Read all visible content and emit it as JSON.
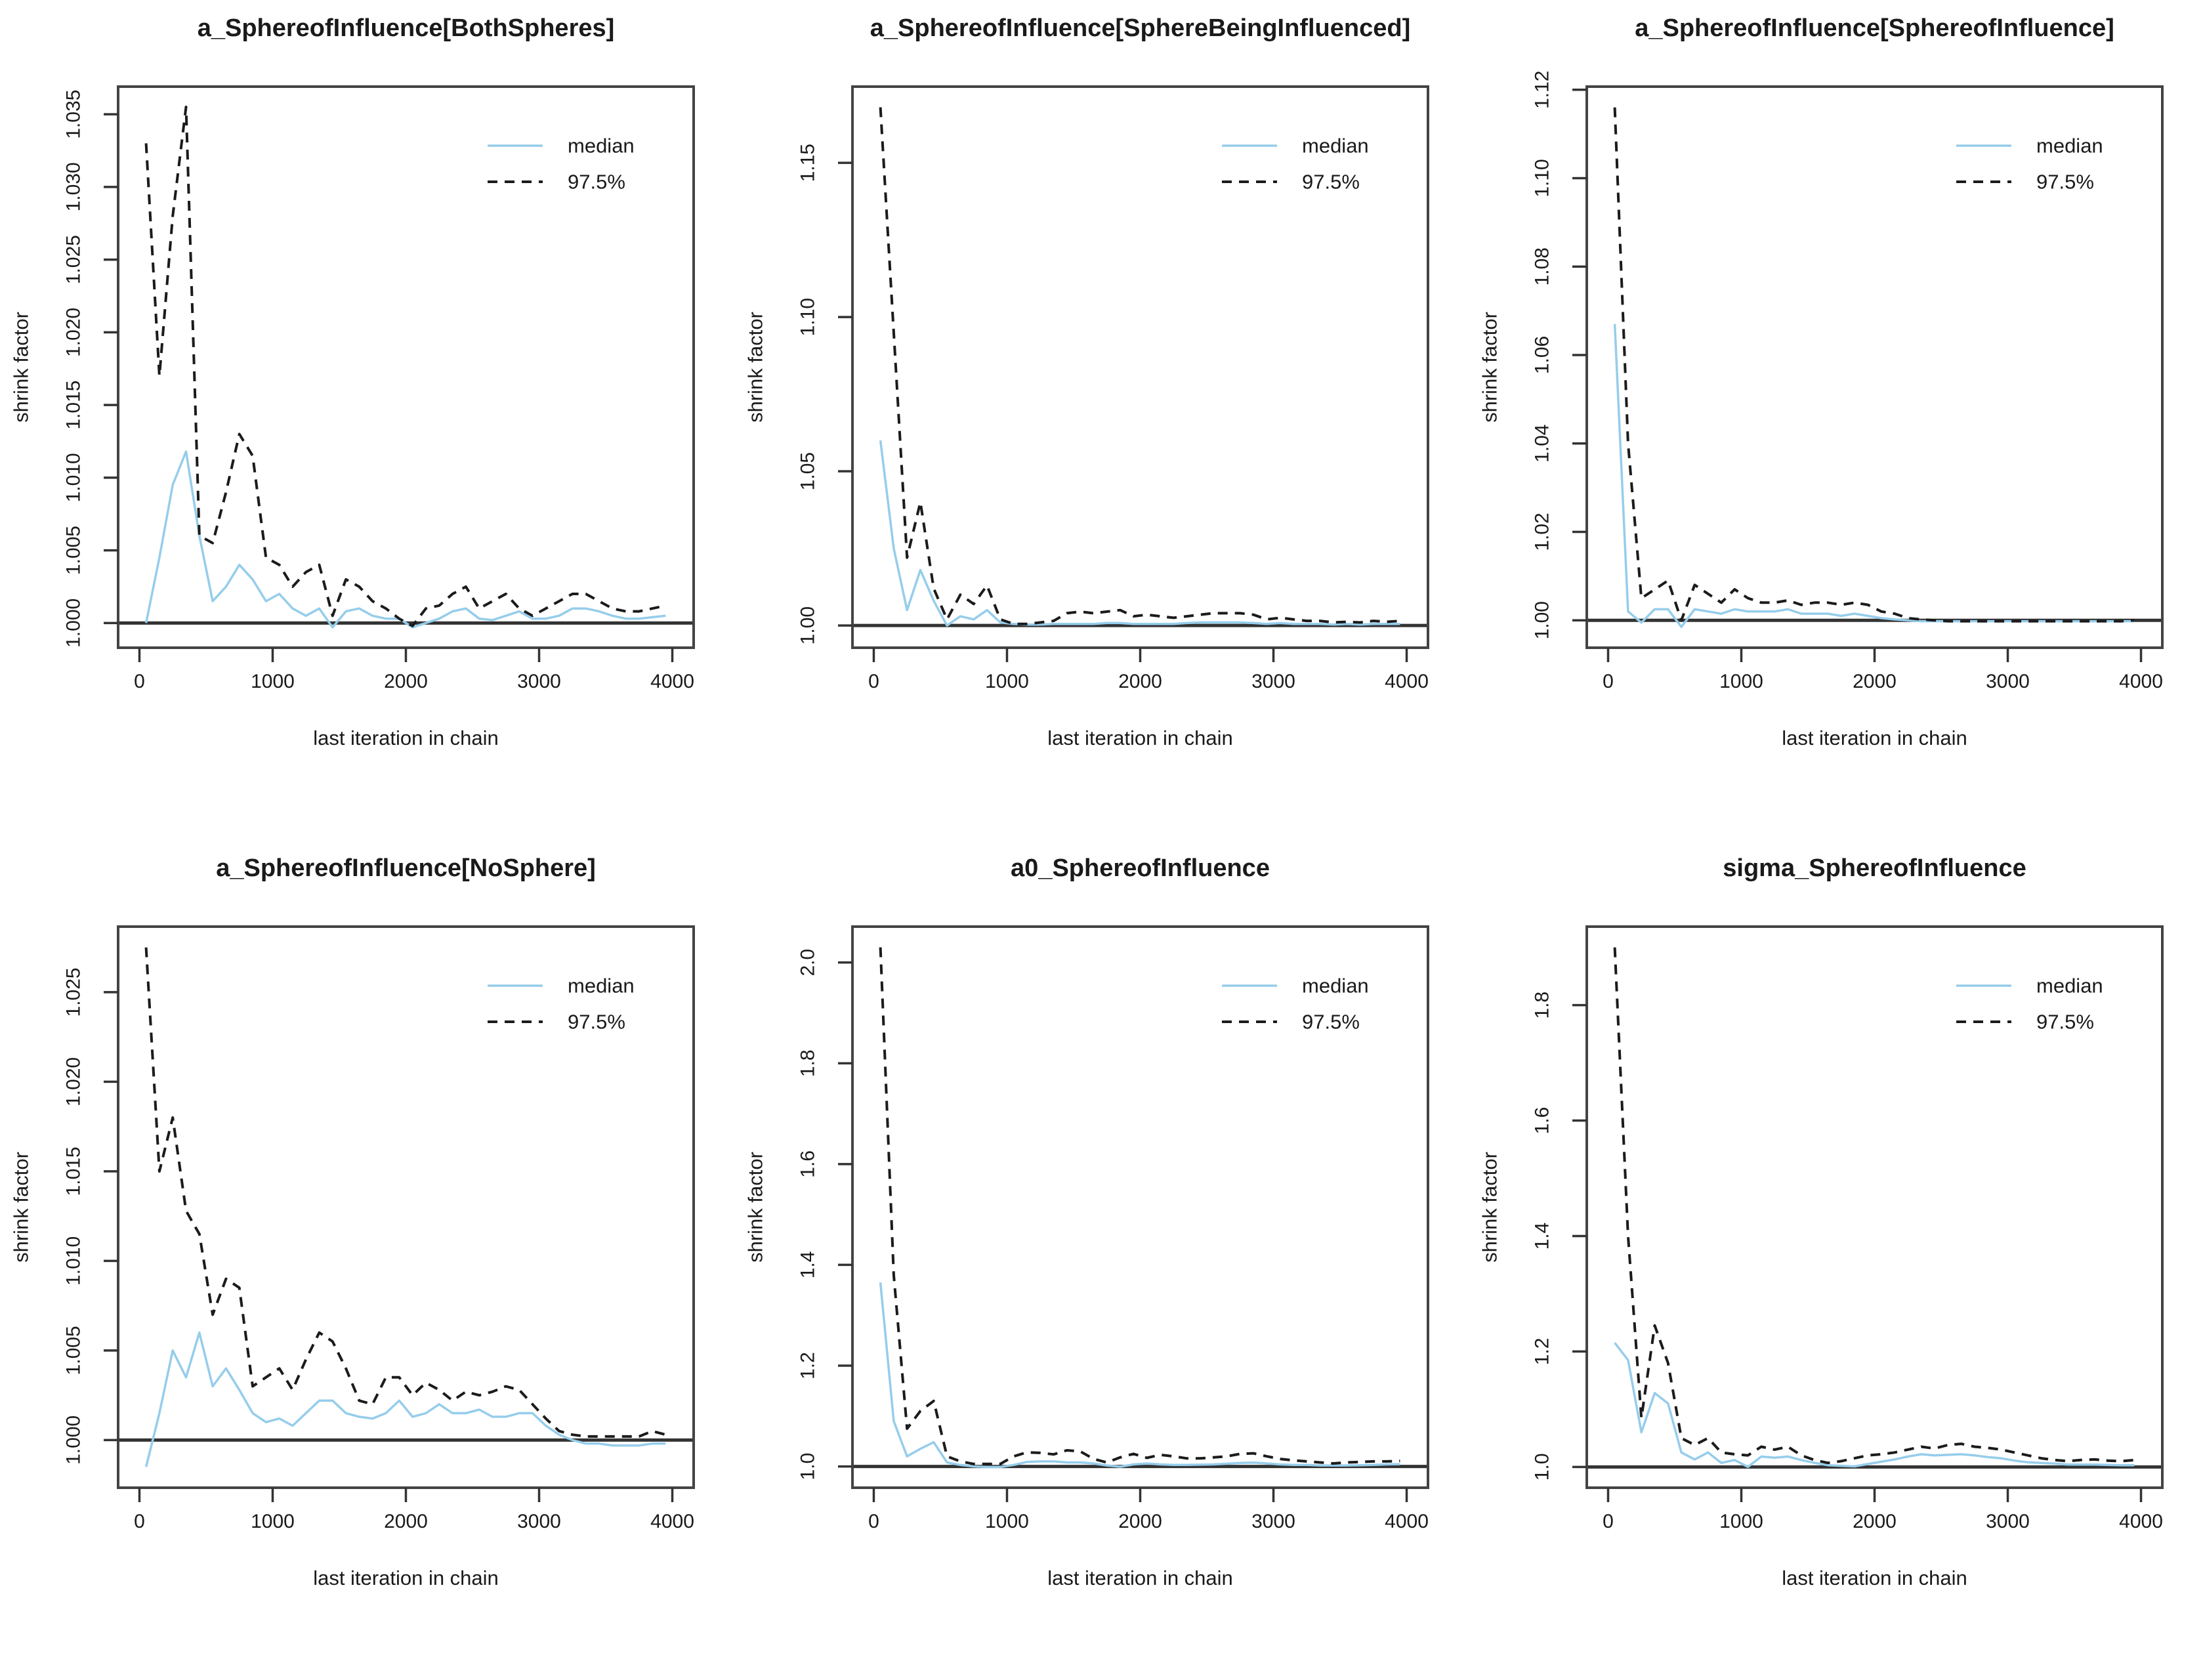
{
  "figure": {
    "rows": 2,
    "cols": 3,
    "background": "#ffffff"
  },
  "colors": {
    "median": "#96CDEB",
    "p975": "#1b1b1b",
    "box": "#444444",
    "refline": "#333333"
  },
  "legend": {
    "median_label": "median",
    "p975_label": "97.5%",
    "position": "top-right"
  },
  "axes": {
    "xlabel": "last iteration in chain",
    "ylabel": "shrink factor",
    "x_ticks": [
      0,
      1000,
      2000,
      3000,
      4000
    ],
    "x_tick_labels": [
      "0",
      "1000",
      "2000",
      "3000",
      "4000"
    ]
  },
  "chart_data": [
    {
      "type": "line",
      "title": "a_SphereofInfluence[BothSpheres]",
      "xlabel": "last iteration in chain",
      "ylabel": "shrink factor",
      "xlim": [
        0,
        4000
      ],
      "ylim": [
        0.9983,
        1.0369
      ],
      "x_ticks": [
        0,
        1000,
        2000,
        3000,
        4000
      ],
      "y_ticks": [
        1.0,
        1.005,
        1.01,
        1.015,
        1.02,
        1.025,
        1.03,
        1.035
      ],
      "y_tick_labels": [
        "1.000",
        "1.005",
        "1.010",
        "1.015",
        "1.020",
        "1.025",
        "1.030",
        "1.035"
      ],
      "ref_line_y": 1.0,
      "grid": false,
      "legend_position": "top-right",
      "x": [
        50,
        150,
        250,
        350,
        450,
        550,
        650,
        750,
        850,
        950,
        1050,
        1150,
        1250,
        1350,
        1450,
        1550,
        1650,
        1750,
        1850,
        1950,
        2050,
        2150,
        2250,
        2350,
        2450,
        2550,
        2650,
        2750,
        2850,
        2950,
        3050,
        3150,
        3250,
        3350,
        3450,
        3550,
        3650,
        3750,
        3850,
        3950
      ],
      "series": [
        {
          "name": "median",
          "style": "solid",
          "values": [
            1.0,
            1.0045,
            1.0095,
            1.0118,
            1.006,
            1.0015,
            1.0025,
            1.004,
            1.003,
            1.0015,
            1.002,
            1.001,
            1.0005,
            1.001,
            0.9997,
            1.0008,
            1.001,
            1.0005,
            1.0003,
            1.0003,
            0.9997,
            1.0,
            1.0003,
            1.0008,
            1.001,
            1.0003,
            1.0002,
            1.0005,
            1.0008,
            1.0003,
            1.0003,
            1.0005,
            1.001,
            1.001,
            1.0008,
            1.0005,
            1.0003,
            1.0003,
            1.0004,
            1.0005
          ]
        },
        {
          "name": "97.5%",
          "style": "dashed",
          "values": [
            1.033,
            1.017,
            1.028,
            1.0355,
            1.006,
            1.0055,
            1.009,
            1.013,
            1.0115,
            1.0045,
            1.004,
            1.0025,
            1.0035,
            1.004,
            1.0005,
            1.003,
            1.0025,
            1.0015,
            1.001,
            1.0003,
            0.9998,
            1.001,
            1.0012,
            1.002,
            1.0025,
            1.001,
            1.0015,
            1.002,
            1.001,
            1.0005,
            1.001,
            1.0015,
            1.002,
            1.002,
            1.0015,
            1.001,
            1.0008,
            1.0008,
            1.001,
            1.0012
          ]
        }
      ]
    },
    {
      "type": "line",
      "title": "a_SphereofInfluence[SphereBeingInfluenced]",
      "xlabel": "last iteration in chain",
      "ylabel": "shrink factor",
      "xlim": [
        0,
        4000
      ],
      "ylim": [
        0.9928,
        1.1747
      ],
      "x_ticks": [
        0,
        1000,
        2000,
        3000,
        4000
      ],
      "y_ticks": [
        1.0,
        1.05,
        1.1,
        1.15
      ],
      "y_tick_labels": [
        "1.00",
        "1.05",
        "1.10",
        "1.15"
      ],
      "ref_line_y": 1.0,
      "grid": false,
      "legend_position": "top-right",
      "x": [
        50,
        150,
        250,
        350,
        450,
        550,
        650,
        750,
        850,
        950,
        1050,
        1150,
        1250,
        1350,
        1450,
        1550,
        1650,
        1750,
        1850,
        1950,
        2050,
        2150,
        2250,
        2350,
        2450,
        2550,
        2650,
        2750,
        2850,
        2950,
        3050,
        3150,
        3250,
        3350,
        3450,
        3550,
        3650,
        3750,
        3850,
        3950
      ],
      "series": [
        {
          "name": "median",
          "style": "solid",
          "values": [
            1.06,
            1.025,
            1.005,
            1.018,
            1.008,
            1.0,
            1.003,
            1.002,
            1.005,
            1.001,
            1.0005,
            1.0003,
            1.0003,
            1.0005,
            1.0005,
            1.0005,
            1.0005,
            1.0008,
            1.0008,
            1.0005,
            1.0005,
            1.0005,
            1.0005,
            1.0008,
            1.001,
            1.001,
            1.001,
            1.001,
            1.0008,
            1.0005,
            1.0008,
            1.0005,
            1.0005,
            1.0005,
            1.0003,
            1.0005,
            1.0003,
            1.0005,
            1.0005,
            1.0005
          ]
        },
        {
          "name": "97.5%",
          "style": "dashed",
          "values": [
            1.168,
            1.095,
            1.022,
            1.04,
            1.012,
            1.002,
            1.01,
            1.007,
            1.013,
            1.002,
            1.0005,
            1.0005,
            1.001,
            1.0015,
            1.004,
            1.0045,
            1.004,
            1.0045,
            1.005,
            1.003,
            1.0035,
            1.003,
            1.0025,
            1.003,
            1.0035,
            1.004,
            1.004,
            1.004,
            1.0035,
            1.002,
            1.0025,
            1.002,
            1.0015,
            1.0015,
            1.001,
            1.0012,
            1.001,
            1.0015,
            1.0012,
            1.0015
          ]
        }
      ]
    },
    {
      "type": "line",
      "title": "a_SphereofInfluence[SphereofInfluence]",
      "xlabel": "last iteration in chain",
      "ylabel": "shrink factor",
      "xlim": [
        0,
        4000
      ],
      "ylim": [
        0.9938,
        1.1207
      ],
      "x_ticks": [
        0,
        1000,
        2000,
        3000,
        4000
      ],
      "y_ticks": [
        1.0,
        1.02,
        1.04,
        1.06,
        1.08,
        1.1,
        1.12
      ],
      "y_tick_labels": [
        "1.00",
        "1.02",
        "1.04",
        "1.06",
        "1.08",
        "1.10",
        "1.12"
      ],
      "ref_line_y": 1.0,
      "grid": false,
      "legend_position": "top-right",
      "x": [
        50,
        150,
        250,
        350,
        450,
        550,
        650,
        750,
        850,
        950,
        1050,
        1150,
        1250,
        1350,
        1450,
        1550,
        1650,
        1750,
        1850,
        1950,
        2050,
        2150,
        2250,
        2350,
        2450,
        2550,
        2650,
        2750,
        2850,
        2950,
        3050,
        3150,
        3250,
        3350,
        3450,
        3550,
        3650,
        3750,
        3850,
        3950
      ],
      "series": [
        {
          "name": "median",
          "style": "solid",
          "values": [
            1.067,
            1.002,
            0.9995,
            1.0025,
            1.0025,
            0.9985,
            1.0025,
            1.002,
            1.0015,
            1.0025,
            1.002,
            1.002,
            1.002,
            1.0025,
            1.0015,
            1.0015,
            1.0015,
            1.001,
            1.0015,
            1.001,
            1.0005,
            1.0002,
            1.0,
            0.9998,
            0.9998,
            0.9998,
            0.9998,
            0.9998,
            0.9998,
            0.9998,
            0.9998,
            0.9998,
            0.9998,
            0.9998,
            0.9998,
            0.9998,
            0.9998,
            0.9998,
            0.9998,
            0.9998
          ]
        },
        {
          "name": "97.5%",
          "style": "dashed",
          "values": [
            1.116,
            1.04,
            1.005,
            1.007,
            1.009,
            1.0,
            1.008,
            1.006,
            1.004,
            1.007,
            1.005,
            1.004,
            1.004,
            1.0045,
            1.0035,
            1.004,
            1.004,
            1.0035,
            1.004,
            1.0035,
            1.002,
            1.0015,
            1.0005,
            1.0002,
            1.0,
            0.9998,
            0.9998,
            0.9998,
            0.9998,
            0.9998,
            0.9998,
            0.9998,
            0.9998,
            0.9998,
            0.9998,
            0.9998,
            0.9998,
            0.9998,
            0.9998,
            1.0
          ]
        }
      ]
    },
    {
      "type": "line",
      "title": "a_SphereofInfluence[NoSphere]",
      "xlabel": "last iteration in chain",
      "ylabel": "shrink factor",
      "xlim": [
        0,
        4000
      ],
      "ylim": [
        0.99734,
        1.02866
      ],
      "x_ticks": [
        0,
        1000,
        2000,
        3000,
        4000
      ],
      "y_ticks": [
        1.0,
        1.005,
        1.01,
        1.015,
        1.02,
        1.025
      ],
      "y_tick_labels": [
        "1.000",
        "1.005",
        "1.010",
        "1.015",
        "1.020",
        "1.025"
      ],
      "ref_line_y": 1.0,
      "grid": false,
      "legend_position": "top-right",
      "x": [
        50,
        150,
        250,
        350,
        450,
        550,
        650,
        750,
        850,
        950,
        1050,
        1150,
        1250,
        1350,
        1450,
        1550,
        1650,
        1750,
        1850,
        1950,
        2050,
        2150,
        2250,
        2350,
        2450,
        2550,
        2650,
        2750,
        2850,
        2950,
        3050,
        3150,
        3250,
        3350,
        3450,
        3550,
        3650,
        3750,
        3850,
        3950
      ],
      "series": [
        {
          "name": "median",
          "style": "solid",
          "values": [
            0.9985,
            1.0015,
            1.005,
            1.0035,
            1.006,
            1.003,
            1.004,
            1.0028,
            1.0015,
            1.001,
            1.0012,
            1.0008,
            1.0015,
            1.0022,
            1.0022,
            1.0015,
            1.0013,
            1.0012,
            1.0015,
            1.0022,
            1.0013,
            1.0015,
            1.002,
            1.0015,
            1.0015,
            1.0017,
            1.0013,
            1.0013,
            1.0015,
            1.0015,
            1.0008,
            1.0003,
            1.0,
            0.9998,
            0.9998,
            0.9997,
            0.9997,
            0.9997,
            0.9998,
            0.9998
          ]
        },
        {
          "name": "97.5%",
          "style": "dashed",
          "values": [
            1.0275,
            1.015,
            1.018,
            1.0128,
            1.0115,
            1.007,
            1.009,
            1.0085,
            1.003,
            1.0035,
            1.004,
            1.0028,
            1.0045,
            1.006,
            1.0055,
            1.004,
            1.0022,
            1.002,
            1.0035,
            1.0035,
            1.0025,
            1.0032,
            1.0028,
            1.0022,
            1.0027,
            1.0025,
            1.0027,
            1.003,
            1.0028,
            1.002,
            1.0012,
            1.0005,
            1.0003,
            1.0002,
            1.0002,
            1.0002,
            1.0002,
            1.0002,
            1.0005,
            1.0003
          ]
        }
      ]
    },
    {
      "type": "line",
      "title": "a0_SphereofInfluence",
      "xlabel": "last iteration in chain",
      "ylabel": "shrink factor",
      "xlim": [
        0,
        4000
      ],
      "ylim": [
        0.9578,
        2.0712
      ],
      "x_ticks": [
        0,
        1000,
        2000,
        3000,
        4000
      ],
      "y_ticks": [
        1.0,
        1.2,
        1.4,
        1.6,
        1.8,
        2.0
      ],
      "y_tick_labels": [
        "1.0",
        "1.2",
        "1.4",
        "1.6",
        "1.8",
        "2.0"
      ],
      "ref_line_y": 1.0,
      "grid": false,
      "legend_position": "top-right",
      "x": [
        50,
        150,
        250,
        350,
        450,
        550,
        650,
        750,
        850,
        950,
        1050,
        1150,
        1250,
        1350,
        1450,
        1550,
        1650,
        1750,
        1850,
        1950,
        2050,
        2150,
        2250,
        2350,
        2450,
        2550,
        2650,
        2750,
        2850,
        2950,
        3050,
        3150,
        3250,
        3350,
        3450,
        3550,
        3650,
        3750,
        3850,
        3950
      ],
      "series": [
        {
          "name": "median",
          "style": "solid",
          "values": [
            1.365,
            1.09,
            1.02,
            1.035,
            1.048,
            1.008,
            1.003,
            1.0,
            0.999,
            0.999,
            1.003,
            1.009,
            1.01,
            1.01,
            1.008,
            1.008,
            1.006,
            1.002,
            0.9995,
            1.004,
            1.006,
            1.004,
            1.003,
            1.003,
            1.0035,
            1.004,
            1.0055,
            1.007,
            1.0075,
            1.006,
            1.004,
            1.003,
            1.003,
            1.002,
            1.002,
            1.002,
            1.0025,
            1.003,
            1.004,
            1.0045
          ]
        },
        {
          "name": "97.5%",
          "style": "dashed",
          "values": [
            2.03,
            1.38,
            1.075,
            1.11,
            1.13,
            1.02,
            1.01,
            1.005,
            1.005,
            1.005,
            1.02,
            1.028,
            1.027,
            1.024,
            1.032,
            1.03,
            1.015,
            1.008,
            1.018,
            1.025,
            1.017,
            1.023,
            1.02,
            1.016,
            1.016,
            1.018,
            1.02,
            1.025,
            1.026,
            1.02,
            1.015,
            1.012,
            1.01,
            1.008,
            1.006,
            1.008,
            1.009,
            1.01,
            1.01,
            1.011
          ]
        }
      ]
    },
    {
      "type": "line",
      "title": "sigma_SphereofInfluence",
      "xlabel": "last iteration in chain",
      "ylabel": "shrink factor",
      "xlim": [
        0,
        4000
      ],
      "ylim": [
        0.964,
        1.936
      ],
      "x_ticks": [
        0,
        1000,
        2000,
        3000,
        4000
      ],
      "y_ticks": [
        1.0,
        1.2,
        1.4,
        1.6,
        1.8
      ],
      "y_tick_labels": [
        "1.0",
        "1.2",
        "1.4",
        "1.6",
        "1.8"
      ],
      "ref_line_y": 1.0,
      "grid": false,
      "legend_position": "top-right",
      "x": [
        50,
        150,
        250,
        350,
        450,
        550,
        650,
        750,
        850,
        950,
        1050,
        1150,
        1250,
        1350,
        1450,
        1550,
        1650,
        1750,
        1850,
        1950,
        2050,
        2150,
        2250,
        2350,
        2450,
        2550,
        2650,
        2750,
        2850,
        2950,
        3050,
        3150,
        3250,
        3350,
        3450,
        3550,
        3650,
        3750,
        3850,
        3950
      ],
      "series": [
        {
          "name": "median",
          "style": "solid",
          "values": [
            1.215,
            1.185,
            1.06,
            1.128,
            1.11,
            1.025,
            1.013,
            1.025,
            1.007,
            1.012,
            1.0,
            1.018,
            1.016,
            1.018,
            1.012,
            1.007,
            1.003,
            1.002,
            1.001,
            1.005,
            1.009,
            1.013,
            1.018,
            1.022,
            1.02,
            1.021,
            1.022,
            1.02,
            1.017,
            1.015,
            1.011,
            1.008,
            1.007,
            1.006,
            1.004,
            1.004,
            1.004,
            1.0035,
            1.003,
            1.003
          ]
        },
        {
          "name": "97.5%",
          "style": "dashed",
          "values": [
            1.9,
            1.4,
            1.085,
            1.245,
            1.18,
            1.05,
            1.038,
            1.05,
            1.025,
            1.022,
            1.02,
            1.035,
            1.03,
            1.035,
            1.02,
            1.012,
            1.007,
            1.01,
            1.015,
            1.02,
            1.022,
            1.025,
            1.03,
            1.035,
            1.032,
            1.038,
            1.04,
            1.035,
            1.033,
            1.03,
            1.025,
            1.02,
            1.015,
            1.012,
            1.01,
            1.012,
            1.013,
            1.011,
            1.01,
            1.012
          ]
        }
      ]
    }
  ]
}
